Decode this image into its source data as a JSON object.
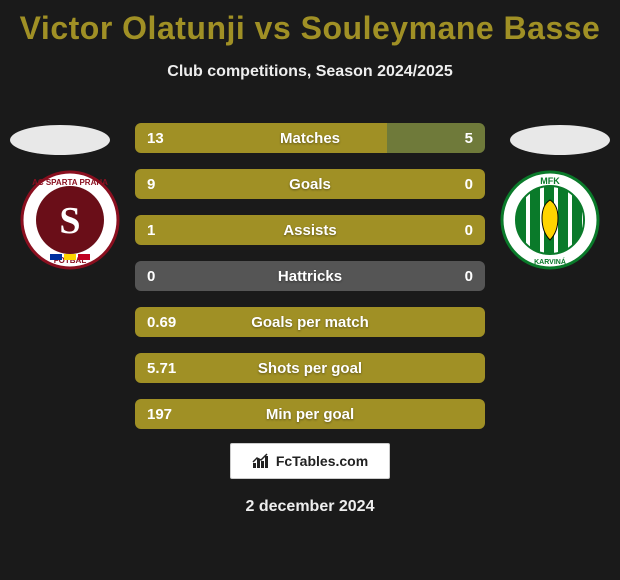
{
  "title_color": "#a09025",
  "title": "Victor Olatunji vs Souleymane Basse",
  "subtitle": "Club competitions, Season 2024/2025",
  "bar_left_color": "#a09025",
  "bar_right_color": "#6f7a3a",
  "bar_neutral_color": "#555555",
  "stats": [
    {
      "label": "Matches",
      "left_val": "13",
      "right_val": "5",
      "left_pct": 72,
      "right_pct": 28,
      "left_color": "#a09025",
      "right_color": "#6f7a3a"
    },
    {
      "label": "Goals",
      "left_val": "9",
      "right_val": "0",
      "left_pct": 100,
      "right_pct": 0,
      "left_color": "#a09025",
      "right_color": "#6f7a3a"
    },
    {
      "label": "Assists",
      "left_val": "1",
      "right_val": "0",
      "left_pct": 100,
      "right_pct": 0,
      "left_color": "#a09025",
      "right_color": "#6f7a3a"
    },
    {
      "label": "Hattricks",
      "left_val": "0",
      "right_val": "0",
      "left_pct": 50,
      "right_pct": 50,
      "left_color": "#555555",
      "right_color": "#555555"
    },
    {
      "label": "Goals per match",
      "left_val": "0.69",
      "right_val": "",
      "left_pct": 100,
      "right_pct": 0,
      "left_color": "#a09025",
      "right_color": "#6f7a3a"
    },
    {
      "label": "Shots per goal",
      "left_val": "5.71",
      "right_val": "",
      "left_pct": 100,
      "right_pct": 0,
      "left_color": "#a09025",
      "right_color": "#6f7a3a"
    },
    {
      "label": "Min per goal",
      "left_val": "197",
      "right_val": "",
      "left_pct": 100,
      "right_pct": 0,
      "left_color": "#a09025",
      "right_color": "#6f7a3a"
    }
  ],
  "club_left": {
    "name": "AC Sparta Praha",
    "ring_color": "#ffffff",
    "ring_border": "#8a0f1f",
    "inner_color": "#6a0e18",
    "letter": "S",
    "accent_colors": [
      "#0030a0",
      "#ffd400",
      "#c00020"
    ]
  },
  "club_right": {
    "name": "MFK Karviná",
    "ring_color": "#ffffff",
    "ring_border": "#0a7a2a",
    "inner_color": "#f5f5f5",
    "stripes": [
      "#0a7a2a",
      "#ffffff"
    ],
    "text_top": "MFK",
    "text_bottom": "KARVINÁ"
  },
  "footer_brand": "FcTables.com",
  "date": "2 december 2024",
  "background_color": "#1a1a1a",
  "oval_color": "#e8e8e8"
}
